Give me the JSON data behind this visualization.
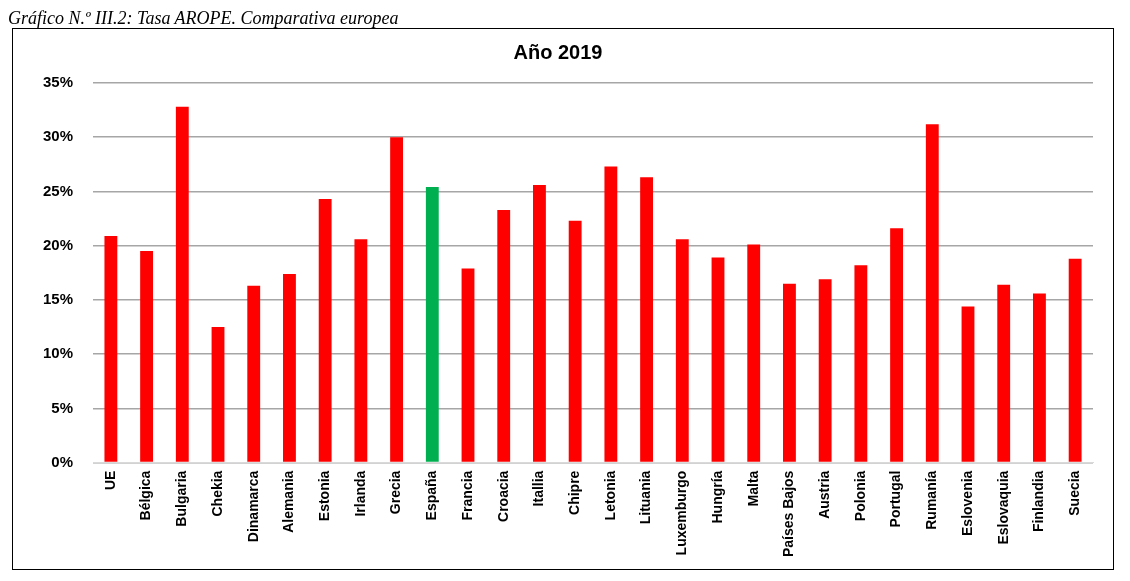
{
  "chart_data": {
    "type": "bar",
    "title": "Año 2019",
    "annotations": [
      "Gráfico N.º III.2: Tasa AROPE. Comparativa europea"
    ],
    "categories": [
      "UE",
      "Bélgica",
      "Bulgaria",
      "Chekia",
      "Dinamarca",
      "Alemania",
      "Estonia",
      "Irlanda",
      "Grecia",
      "España",
      "Francia",
      "Croacia",
      "Itallia",
      "Chipre",
      "Letonia",
      "Lituania",
      "Luxemburgo",
      "Hungría",
      "Malta",
      "Países Bajos",
      "Austria",
      "Polonia",
      "Portugal",
      "Rumanía",
      "Eslovenia",
      "Eslovaquia",
      "Finlandia",
      "Suecia"
    ],
    "values": [
      20.9,
      19.5,
      32.8,
      12.5,
      16.3,
      17.4,
      24.3,
      20.6,
      30.0,
      25.4,
      17.9,
      23.3,
      25.6,
      22.3,
      27.3,
      26.3,
      20.6,
      18.9,
      20.1,
      16.5,
      16.9,
      18.2,
      21.6,
      31.2,
      14.4,
      16.4,
      15.6,
      18.8
    ],
    "colors": [
      "#ff0000",
      "#ff0000",
      "#ff0000",
      "#ff0000",
      "#ff0000",
      "#ff0000",
      "#ff0000",
      "#ff0000",
      "#ff0000",
      "#00b050",
      "#ff0000",
      "#ff0000",
      "#ff0000",
      "#ff0000",
      "#ff0000",
      "#ff0000",
      "#ff0000",
      "#ff0000",
      "#ff0000",
      "#ff0000",
      "#ff0000",
      "#ff0000",
      "#ff0000",
      "#ff0000",
      "#ff0000",
      "#ff0000",
      "#ff0000",
      "#ff0000"
    ],
    "ylim": [
      0,
      35
    ],
    "yticks": [
      {
        "value": 0,
        "label": "0%"
      },
      {
        "value": 5,
        "label": "5%"
      },
      {
        "value": 10,
        "label": "10%"
      },
      {
        "value": 15,
        "label": "15%"
      },
      {
        "value": 20,
        "label": "20%"
      },
      {
        "value": 25,
        "label": "25%"
      },
      {
        "value": 30,
        "label": "30%"
      },
      {
        "value": 35,
        "label": "35%"
      }
    ],
    "grid": "y",
    "legend": false
  }
}
